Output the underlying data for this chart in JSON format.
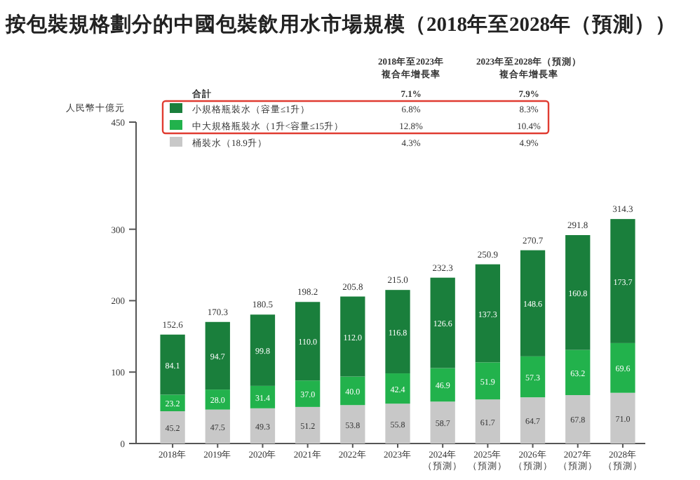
{
  "chart_data": {
    "type": "bar",
    "stacked": true,
    "title": "按包裝規格劃分的中國包裝飲用水市場規模（2018年至2028年（預測））",
    "ylabel": "人民幣十億元",
    "categories": [
      "2018年",
      "2019年",
      "2020年",
      "2021年",
      "2022年",
      "2023年",
      "2024年（預測）",
      "2025年（預測）",
      "2026年（預測）",
      "2027年（預測）",
      "2028年（預測）"
    ],
    "series": [
      {
        "name": "桶裝水（18.9升）",
        "color": "#c8c8c8",
        "values": [
          45.2,
          47.5,
          49.3,
          51.2,
          53.8,
          55.8,
          58.7,
          61.7,
          64.7,
          67.8,
          71.0
        ],
        "value_labels": [
          "45.2",
          "47.5",
          "49.3",
          "51.2",
          "53.8",
          "55.8",
          "58.7",
          "61.7",
          "64.7",
          "67.8",
          "71.0"
        ]
      },
      {
        "name": "中大規格瓶裝水（1升<容量≤15升）",
        "color": "#22b24c",
        "values": [
          23.2,
          28.0,
          31.4,
          37.0,
          40.0,
          42.4,
          46.9,
          51.9,
          57.3,
          63.2,
          69.6
        ],
        "value_labels": [
          "23.2",
          "28.0",
          "31.4",
          "37.0",
          "40.0",
          "42.4",
          "46.9",
          "51.9",
          "57.3",
          "63.2",
          "69.6"
        ]
      },
      {
        "name": "小規格瓶裝水（容量≤1升）",
        "color": "#1a7f3c",
        "values": [
          84.1,
          94.7,
          99.8,
          110.0,
          112.0,
          116.8,
          126.6,
          137.3,
          148.6,
          160.8,
          173.7
        ],
        "value_labels": [
          "84.1",
          "94.7",
          "99.8",
          "110.0",
          "112.0",
          "116.8",
          "126.6",
          "137.3",
          "148.6",
          "160.8",
          "173.7"
        ]
      }
    ],
    "totals": [
      "152.6",
      "170.3",
      "180.5",
      "198.2",
      "205.8",
      "215.0",
      "232.3",
      "250.9",
      "270.7",
      "291.8",
      "314.3"
    ],
    "ylim": [
      0,
      450
    ],
    "yticks": [
      0,
      100,
      200,
      300,
      450
    ],
    "legend": "top",
    "annotations": [
      "2018年至2023年",
      "複合年增長率",
      "2023年至2028年（預測）",
      "複合年增長率",
      "合計",
      "7.1%",
      "7.9%",
      "6.8%",
      "8.3%",
      "12.8%",
      "10.4%",
      "4.3%",
      "4.9%"
    ]
  }
}
